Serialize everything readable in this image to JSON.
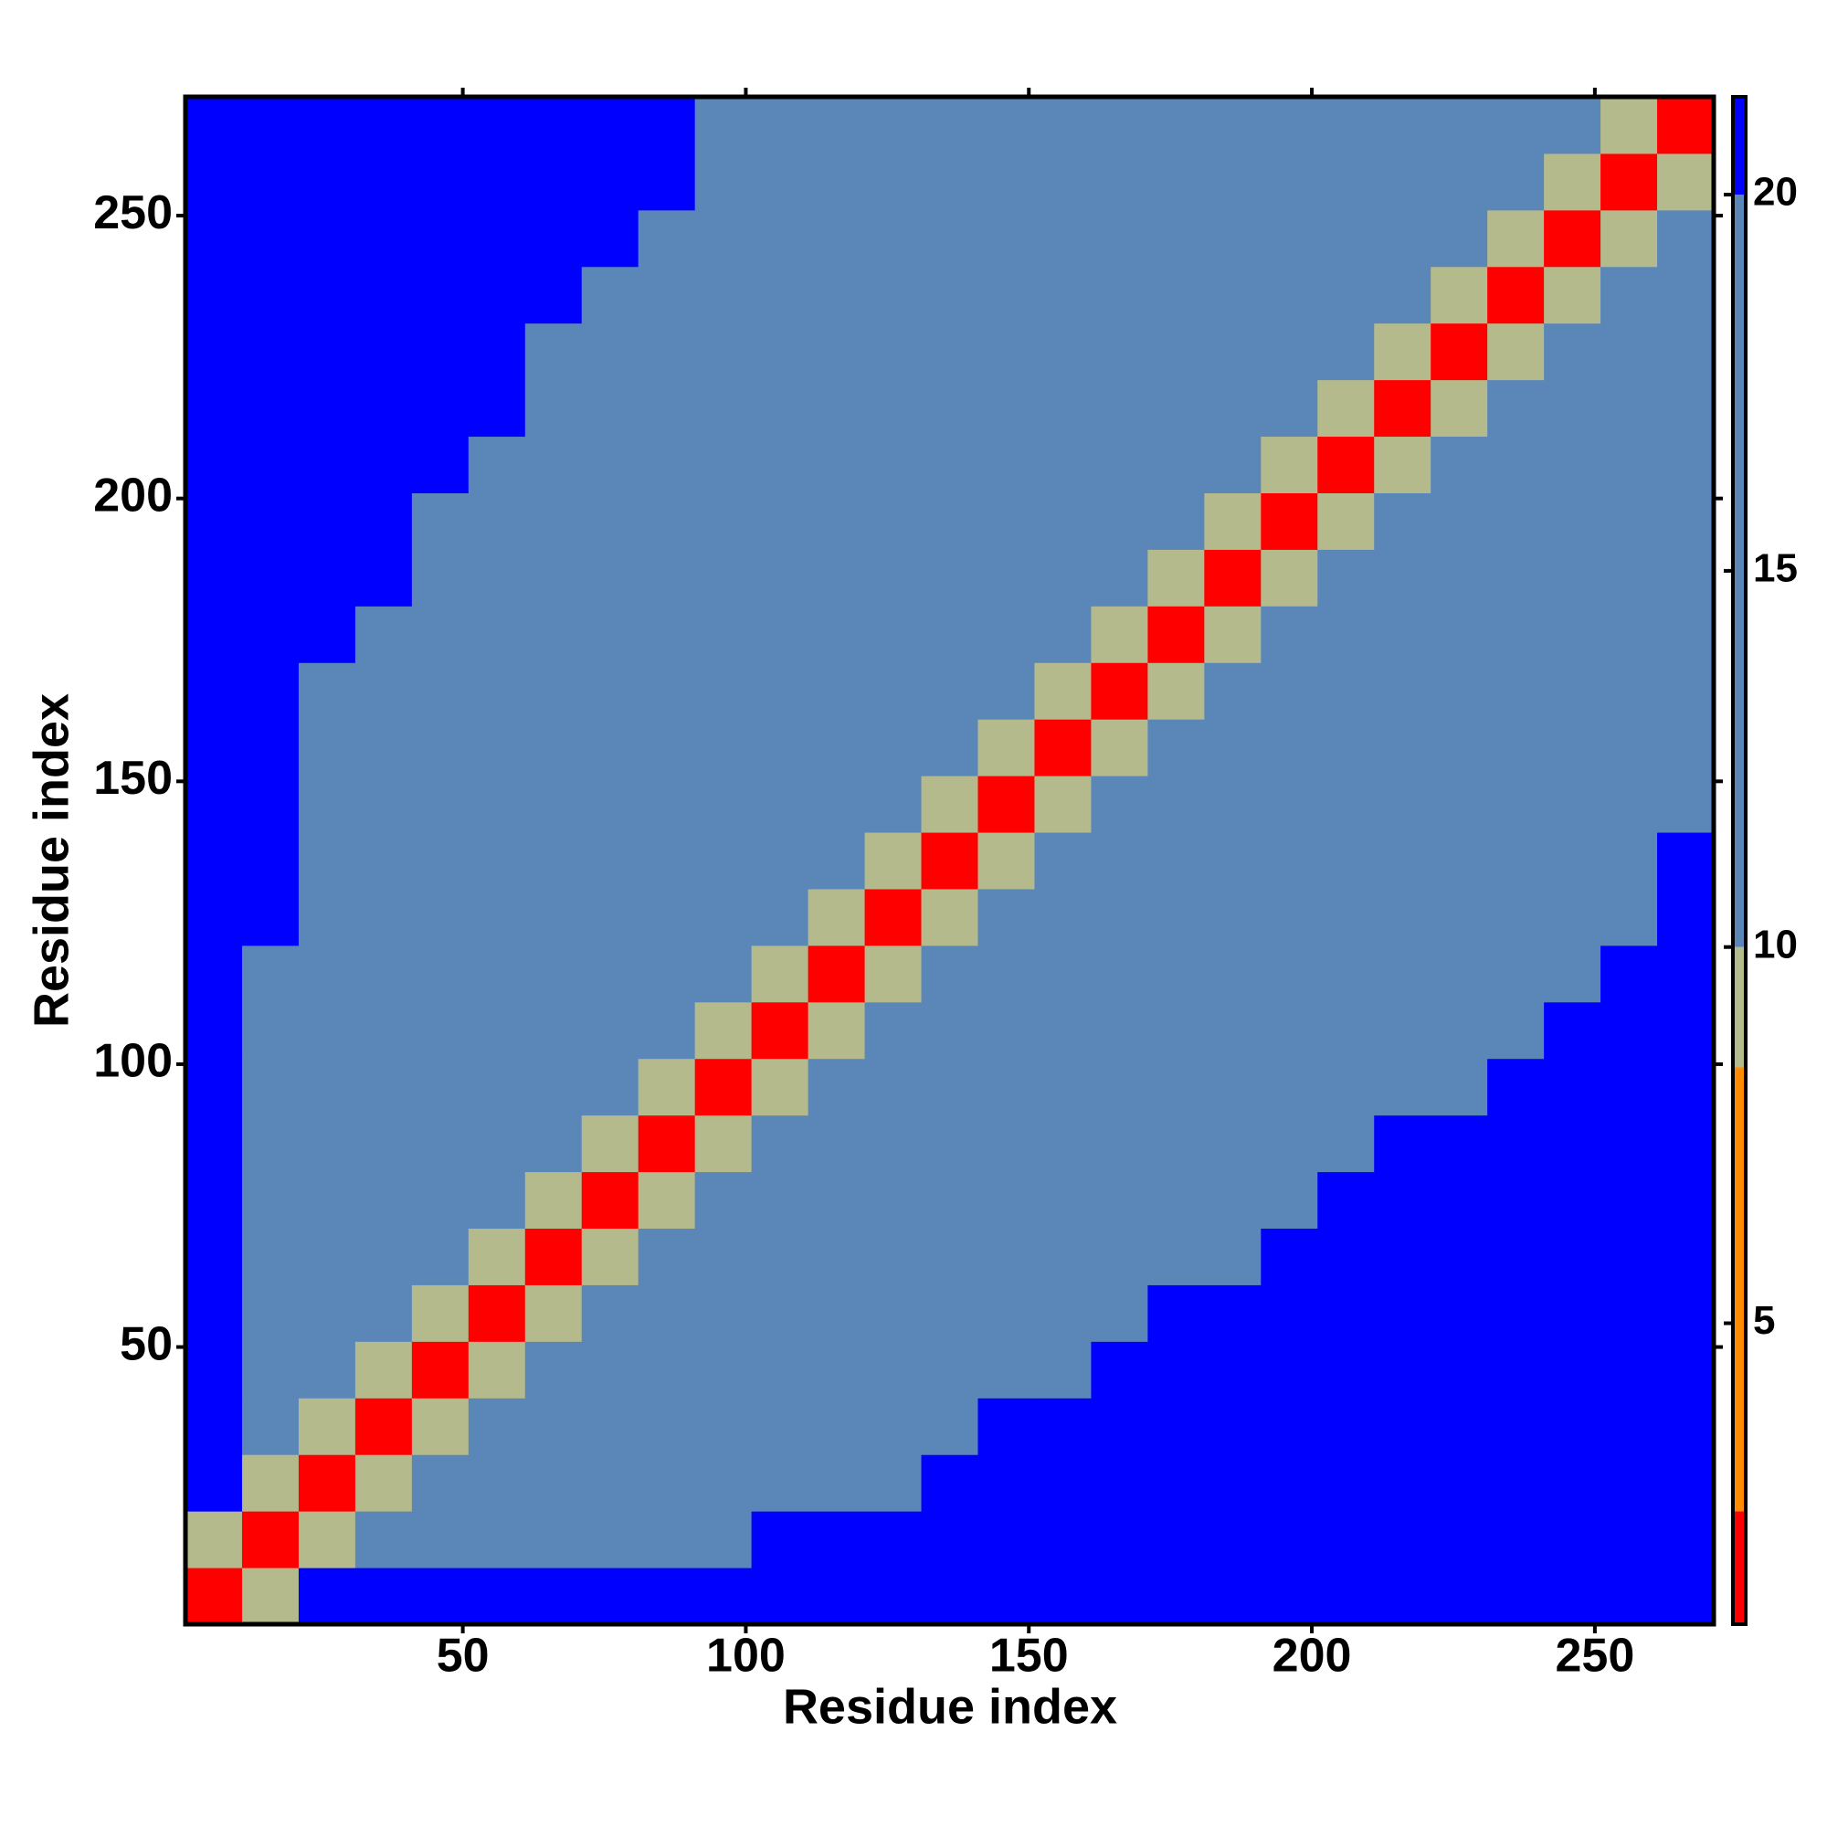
{
  "chart_data": {
    "type": "heatmap",
    "x_label": "Residue index",
    "y_label": "Residue index",
    "xlim": [
      1,
      271
    ],
    "ylim": [
      1,
      271
    ],
    "xticks": [
      50,
      100,
      150,
      200,
      250
    ],
    "yticks": [
      50,
      100,
      150,
      200,
      250
    ],
    "x_edges": [
      1,
      11,
      21,
      31,
      41,
      51,
      61,
      71,
      81,
      91,
      101,
      111,
      121,
      131,
      141,
      151,
      161,
      171,
      181,
      191,
      201,
      211,
      221,
      231,
      241,
      251,
      261,
      271
    ],
    "y_edges": [
      1,
      11,
      21,
      31,
      41,
      51,
      61,
      71,
      81,
      91,
      101,
      111,
      121,
      131,
      141,
      151,
      161,
      171,
      181,
      191,
      201,
      211,
      221,
      231,
      241,
      251,
      261,
      271
    ],
    "zlim": [
      1,
      21.3
    ],
    "zticks": [
      5,
      10,
      15,
      20
    ],
    "color_bands": [
      {
        "from": 1,
        "to": 2.5,
        "color": "#ff0000"
      },
      {
        "from": 2.5,
        "to": 8.4,
        "color": "#ff8c00"
      },
      {
        "from": 8.4,
        "to": 10,
        "color": "#b5ba8c"
      },
      {
        "from": 10,
        "to": 20,
        "color": "#5b87b8"
      },
      {
        "from": 20,
        "to": 21.3,
        "color": "#0000ff"
      }
    ],
    "z": [
      [
        2,
        9,
        21,
        21,
        21,
        21,
        21,
        21,
        21,
        21,
        21,
        21,
        21,
        21,
        21,
        21,
        21,
        21,
        21,
        21,
        21,
        21,
        21,
        21,
        21,
        21,
        21
      ],
      [
        9,
        2,
        9,
        16,
        16,
        16,
        16,
        16,
        16,
        16,
        21,
        21,
        21,
        21,
        21,
        21,
        21,
        21,
        21,
        21,
        21,
        21,
        21,
        21,
        21,
        21,
        21
      ],
      [
        21,
        9,
        2,
        9,
        16,
        16,
        16,
        16,
        16,
        16,
        16,
        16,
        16,
        21,
        21,
        21,
        21,
        21,
        21,
        21,
        21,
        21,
        21,
        21,
        21,
        21,
        21
      ],
      [
        21,
        16,
        9,
        2,
        9,
        16,
        16,
        16,
        16,
        16,
        16,
        16,
        16,
        16,
        21,
        21,
        21,
        21,
        21,
        21,
        21,
        21,
        21,
        21,
        21,
        21,
        21
      ],
      [
        21,
        16,
        16,
        9,
        2,
        9,
        16,
        16,
        16,
        16,
        16,
        16,
        16,
        16,
        16,
        16,
        21,
        21,
        21,
        21,
        21,
        21,
        21,
        21,
        21,
        21,
        21
      ],
      [
        21,
        16,
        16,
        16,
        9,
        2,
        9,
        16,
        16,
        16,
        16,
        16,
        16,
        16,
        16,
        16,
        16,
        21,
        21,
        21,
        21,
        21,
        21,
        21,
        21,
        21,
        21
      ],
      [
        21,
        16,
        16,
        16,
        16,
        9,
        2,
        9,
        16,
        16,
        16,
        16,
        16,
        16,
        16,
        16,
        16,
        16,
        16,
        21,
        21,
        21,
        21,
        21,
        21,
        21,
        21
      ],
      [
        21,
        16,
        16,
        16,
        16,
        16,
        9,
        2,
        9,
        16,
        16,
        16,
        16,
        16,
        16,
        16,
        16,
        16,
        16,
        16,
        21,
        21,
        21,
        21,
        21,
        21,
        21
      ],
      [
        21,
        16,
        16,
        16,
        16,
        16,
        16,
        9,
        2,
        9,
        16,
        16,
        16,
        16,
        16,
        16,
        16,
        16,
        16,
        16,
        16,
        21,
        21,
        21,
        21,
        21,
        21
      ],
      [
        21,
        16,
        16,
        16,
        16,
        16,
        16,
        16,
        9,
        2,
        9,
        16,
        16,
        16,
        16,
        16,
        16,
        16,
        16,
        16,
        16,
        16,
        16,
        21,
        21,
        21,
        21
      ],
      [
        21,
        16,
        16,
        16,
        16,
        16,
        16,
        16,
        16,
        9,
        2,
        9,
        16,
        16,
        16,
        16,
        16,
        16,
        16,
        16,
        16,
        16,
        16,
        16,
        21,
        21,
        21
      ],
      [
        21,
        16,
        16,
        16,
        16,
        16,
        16,
        16,
        16,
        16,
        9,
        2,
        9,
        16,
        16,
        16,
        16,
        16,
        16,
        16,
        16,
        16,
        16,
        16,
        16,
        21,
        21
      ],
      [
        21,
        21,
        16,
        16,
        16,
        16,
        16,
        16,
        16,
        16,
        16,
        9,
        2,
        9,
        16,
        16,
        16,
        16,
        16,
        16,
        16,
        16,
        16,
        16,
        16,
        16,
        21
      ],
      [
        21,
        21,
        16,
        16,
        16,
        16,
        16,
        16,
        16,
        16,
        16,
        16,
        9,
        2,
        9,
        16,
        16,
        16,
        16,
        16,
        16,
        16,
        16,
        16,
        16,
        16,
        21
      ],
      [
        21,
        21,
        16,
        16,
        16,
        16,
        16,
        16,
        16,
        16,
        16,
        16,
        16,
        9,
        2,
        9,
        16,
        16,
        16,
        16,
        16,
        16,
        16,
        16,
        16,
        16,
        16
      ],
      [
        21,
        21,
        16,
        16,
        16,
        16,
        16,
        16,
        16,
        16,
        16,
        16,
        16,
        16,
        9,
        2,
        9,
        16,
        16,
        16,
        16,
        16,
        16,
        16,
        16,
        16,
        16
      ],
      [
        21,
        21,
        16,
        16,
        16,
        16,
        16,
        16,
        16,
        16,
        16,
        16,
        16,
        16,
        16,
        9,
        2,
        9,
        16,
        16,
        16,
        16,
        16,
        16,
        16,
        16,
        16
      ],
      [
        21,
        21,
        21,
        16,
        16,
        16,
        16,
        16,
        16,
        16,
        16,
        16,
        16,
        16,
        16,
        16,
        9,
        2,
        9,
        16,
        16,
        16,
        16,
        16,
        16,
        16,
        16
      ],
      [
        21,
        21,
        21,
        21,
        16,
        16,
        16,
        16,
        16,
        16,
        16,
        16,
        16,
        16,
        16,
        16,
        16,
        9,
        2,
        9,
        16,
        16,
        16,
        16,
        16,
        16,
        16
      ],
      [
        21,
        21,
        21,
        21,
        16,
        16,
        16,
        16,
        16,
        16,
        16,
        16,
        16,
        16,
        16,
        16,
        16,
        16,
        9,
        2,
        9,
        16,
        16,
        16,
        16,
        16,
        16
      ],
      [
        21,
        21,
        21,
        21,
        21,
        16,
        16,
        16,
        16,
        16,
        16,
        16,
        16,
        16,
        16,
        16,
        16,
        16,
        16,
        9,
        2,
        9,
        16,
        16,
        16,
        16,
        16
      ],
      [
        21,
        21,
        21,
        21,
        21,
        21,
        16,
        16,
        16,
        16,
        16,
        16,
        16,
        16,
        16,
        16,
        16,
        16,
        16,
        16,
        9,
        2,
        9,
        16,
        16,
        16,
        16
      ],
      [
        21,
        21,
        21,
        21,
        21,
        21,
        16,
        16,
        16,
        16,
        16,
        16,
        16,
        16,
        16,
        16,
        16,
        16,
        16,
        16,
        16,
        9,
        2,
        9,
        16,
        16,
        16
      ],
      [
        21,
        21,
        21,
        21,
        21,
        21,
        21,
        16,
        16,
        16,
        16,
        16,
        16,
        16,
        16,
        16,
        16,
        16,
        16,
        16,
        16,
        16,
        9,
        2,
        9,
        16,
        16
      ],
      [
        21,
        21,
        21,
        21,
        21,
        21,
        21,
        21,
        16,
        16,
        16,
        16,
        16,
        16,
        16,
        16,
        16,
        16,
        16,
        16,
        16,
        16,
        16,
        9,
        2,
        9,
        16
      ],
      [
        21,
        21,
        21,
        21,
        21,
        21,
        21,
        21,
        21,
        16,
        16,
        16,
        16,
        16,
        16,
        16,
        16,
        16,
        16,
        16,
        16,
        16,
        16,
        16,
        9,
        2,
        9
      ],
      [
        21,
        21,
        21,
        21,
        21,
        21,
        21,
        21,
        21,
        16,
        16,
        16,
        16,
        16,
        16,
        16,
        16,
        16,
        16,
        16,
        16,
        16,
        16,
        16,
        16,
        9,
        2
      ]
    ]
  }
}
